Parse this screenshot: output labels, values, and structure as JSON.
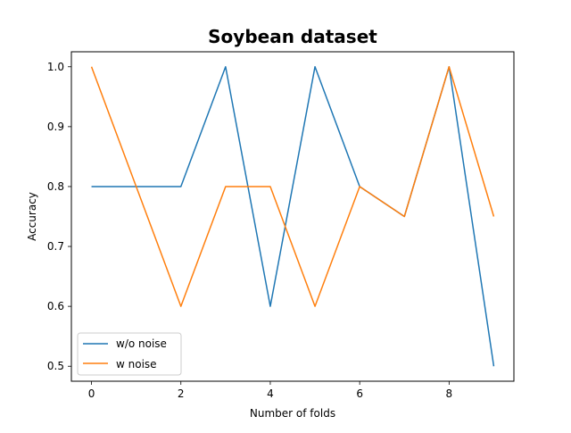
{
  "chart_data": {
    "type": "line",
    "title": "Soybean dataset",
    "xlabel": "Number of folds",
    "ylabel": "Accuracy",
    "x": [
      0,
      1,
      2,
      3,
      4,
      5,
      6,
      7,
      8,
      9
    ],
    "xlim": [
      -0.45,
      9.45
    ],
    "ylim": [
      0.475,
      1.025
    ],
    "xticks": [
      0,
      2,
      4,
      6,
      8
    ],
    "yticks": [
      0.5,
      0.6,
      0.7,
      0.8,
      0.9,
      1.0
    ],
    "xtick_labels": [
      "0",
      "2",
      "4",
      "6",
      "8"
    ],
    "ytick_labels": [
      "0.5",
      "0.6",
      "0.7",
      "0.8",
      "0.9",
      "1.0"
    ],
    "grid": false,
    "legend_position": "lower-left",
    "series": [
      {
        "name": "w/o noise",
        "color": "#1f77b4",
        "values": [
          0.8,
          0.8,
          0.8,
          1.0,
          0.6,
          1.0,
          0.8,
          0.75,
          1.0,
          0.5
        ]
      },
      {
        "name": "w noise",
        "color": "#ff7f0e",
        "values": [
          1.0,
          0.8,
          0.6,
          0.8,
          0.8,
          0.6,
          0.8,
          0.75,
          1.0,
          0.75
        ]
      }
    ]
  }
}
